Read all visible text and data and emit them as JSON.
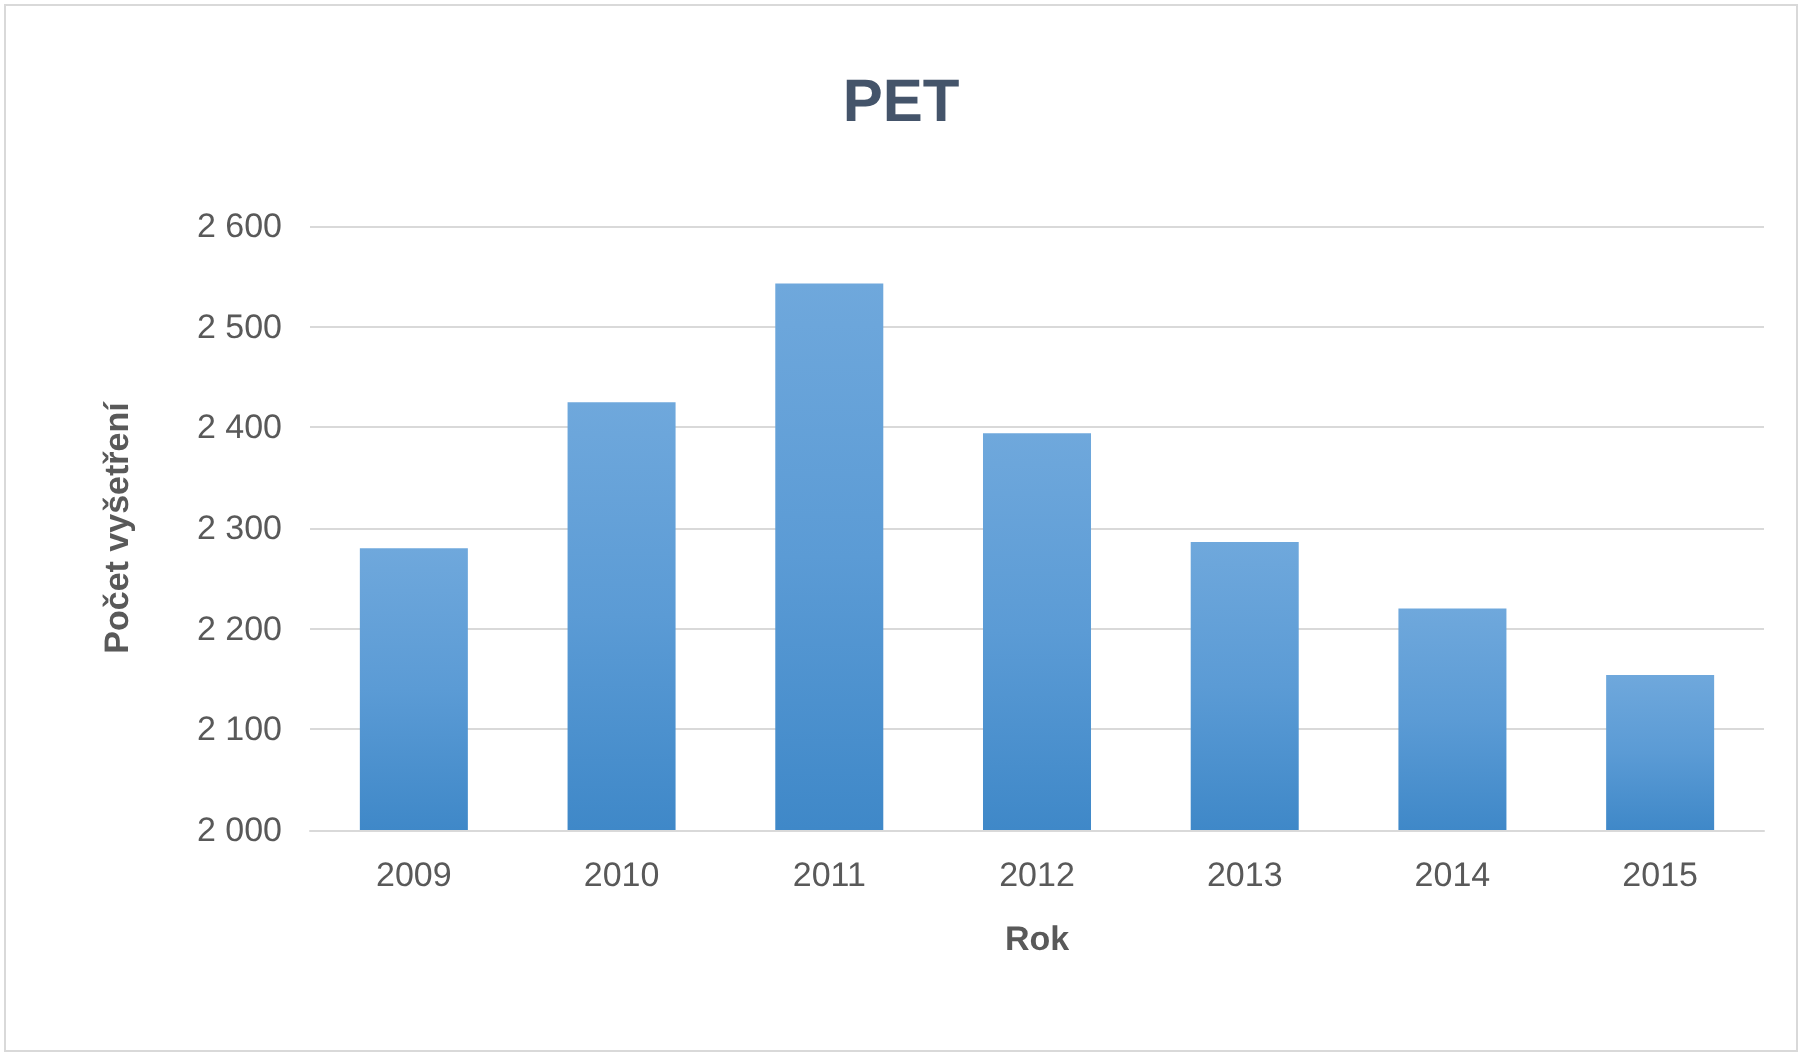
{
  "chart_data": {
    "type": "bar",
    "title": "PET",
    "xlabel": "Rok",
    "ylabel": "Počet vyšetření",
    "categories": [
      "2009",
      "2010",
      "2011",
      "2012",
      "2013",
      "2014",
      "2015"
    ],
    "values": [
      2280,
      2425,
      2543,
      2394,
      2286,
      2220,
      2154
    ],
    "color": "#5b9bd5",
    "ylim": [
      2000,
      2600
    ],
    "yticks": [
      {
        "value": 2000,
        "label": "2 000"
      },
      {
        "value": 2100,
        "label": "2 100"
      },
      {
        "value": 2200,
        "label": "2 200"
      },
      {
        "value": 2300,
        "label": "2 300"
      },
      {
        "value": 2400,
        "label": "2 400"
      },
      {
        "value": 2500,
        "label": "2 500"
      },
      {
        "value": 2600,
        "label": "2 600"
      }
    ],
    "grid": "y"
  }
}
